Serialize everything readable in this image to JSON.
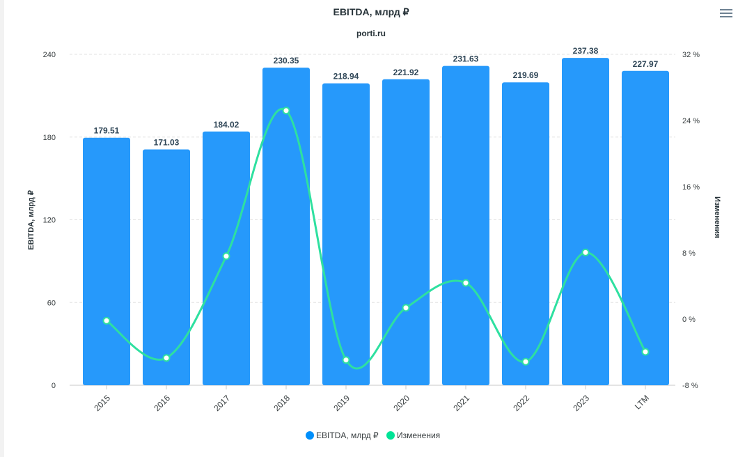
{
  "chart_data": {
    "type": "bar+line",
    "title": "EBITDA, млрд ₽",
    "subtitle": "porti.ru",
    "categories": [
      "2015",
      "2016",
      "2017",
      "2018",
      "2019",
      "2020",
      "2021",
      "2022",
      "2023",
      "LTM"
    ],
    "series": [
      {
        "name": "EBITDA, млрд ₽",
        "type": "bar",
        "axis": "left",
        "color": "#2699fb",
        "values": [
          179.51,
          171.03,
          184.02,
          230.35,
          218.94,
          221.92,
          231.63,
          219.69,
          237.38,
          227.97
        ]
      },
      {
        "name": "Изменения",
        "type": "line",
        "axis": "right",
        "color": "#2ee0a0",
        "values": [
          -0.2,
          -4.7,
          7.6,
          25.2,
          -4.95,
          1.36,
          4.37,
          -5.16,
          8.05,
          -3.96
        ]
      }
    ],
    "ylabel": "EBITDA, млрд ₽",
    "y2label": "Изменения",
    "ylim": [
      0,
      240
    ],
    "yticks": [
      "0",
      "60",
      "120",
      "180",
      "240"
    ],
    "y2lim": [
      -8,
      32
    ],
    "y2ticks": [
      "-8 %",
      "0 %",
      "8 %",
      "16 %",
      "24 %",
      "32 %"
    ],
    "grid": true,
    "legend": "bottom-center"
  }
}
